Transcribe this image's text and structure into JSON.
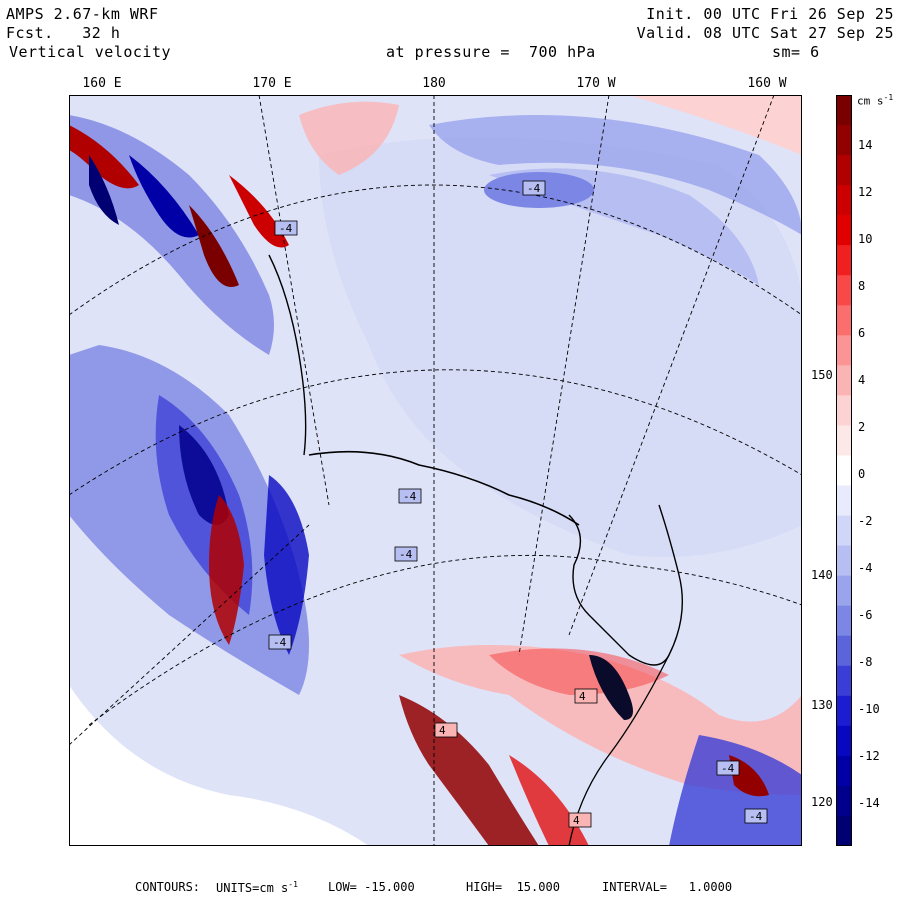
{
  "header": {
    "model": "AMPS 2.67-km WRF",
    "forecast": "Fcst.   32 h",
    "field": "Vertical velocity",
    "init": "Init. 00 UTC Fri 26 Sep 25",
    "valid": "Valid. 08 UTC Sat 27 Sep 25",
    "level": "at pressure =  700 hPa",
    "smoothing": "sm= 6"
  },
  "longitude_labels": [
    "160 E",
    "170 E",
    "180",
    "170 W",
    "160 W"
  ],
  "latitude_labels": [
    "150 W",
    "140 W",
    "130 W",
    "120 W"
  ],
  "colorbar": {
    "unit_label": "cm s",
    "unit_exponent": "-1",
    "tick_labels": [
      "14",
      "12",
      "10",
      "8",
      "6",
      "4",
      "2",
      "0",
      "-2",
      "-4",
      "-6",
      "-8",
      "-10",
      "-12",
      "-14"
    ],
    "colors": [
      "#7a0000",
      "#920000",
      "#b00000",
      "#cc0000",
      "#e00000",
      "#f02020",
      "#f84848",
      "#fa6e6e",
      "#fb9494",
      "#fbb4b4",
      "#fcd2d2",
      "#fde8e8",
      "#ffffff",
      "#e8ebfc",
      "#d0d6f8",
      "#b6bef2",
      "#9aa4ec",
      "#7c86e4",
      "#5c64dc",
      "#3a3ed6",
      "#1c1cd0",
      "#0808c0",
      "#0000a6",
      "#00008c",
      "#000072"
    ]
  },
  "contour_labels": [
    "-4",
    "-4",
    "-4",
    "-4",
    "-4",
    "4",
    "4",
    "-4",
    "4",
    "-4"
  ],
  "footer": {
    "contours": "CONTOURS:",
    "units": "UNITS=cm s",
    "units_exp": "-1",
    "low": "LOW= -15.000",
    "high": "HIGH=  15.000",
    "interval": "INTERVAL=   1.0000"
  },
  "theme": {
    "background": "#ffffff",
    "ocean_field": "#dfe3f8"
  }
}
